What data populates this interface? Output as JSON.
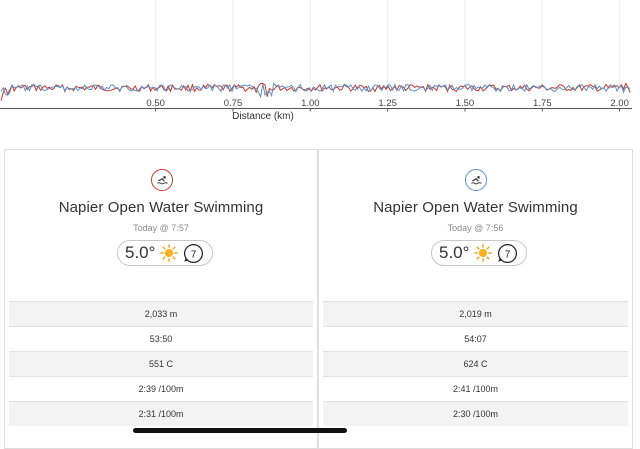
{
  "chart_data": {
    "type": "line",
    "xlabel": "Distance (km)",
    "ylabel": "",
    "x_ticks": [
      "0.50",
      "0.75",
      "1.00",
      "1.25",
      "1.50",
      "1.75",
      "2.00"
    ],
    "xlim": [
      0.0,
      2.04
    ],
    "series": [
      {
        "color": "#c0392b"
      },
      {
        "color": "#5b8fc7"
      }
    ]
  },
  "activities": [
    {
      "title": "Napier Open Water Swimming",
      "date": "Today @ 7:57",
      "temperature": "5.0°",
      "wind": "7",
      "badge_color": "#c0392b",
      "icon": "swim-icon",
      "stats": [
        "2,033 m",
        "53:50",
        "551 C",
        "2:39 /100m",
        "2:31 /100m"
      ]
    },
    {
      "title": "Napier Open Water Swimming",
      "date": "Today @ 7:56",
      "temperature": "5.0°",
      "wind": "7",
      "badge_color": "#5b8fc7",
      "icon": "swim-icon",
      "stats": [
        "2,019 m",
        "54:07",
        "624 C",
        "2:41 /100m",
        "2:30 /100m"
      ]
    }
  ]
}
